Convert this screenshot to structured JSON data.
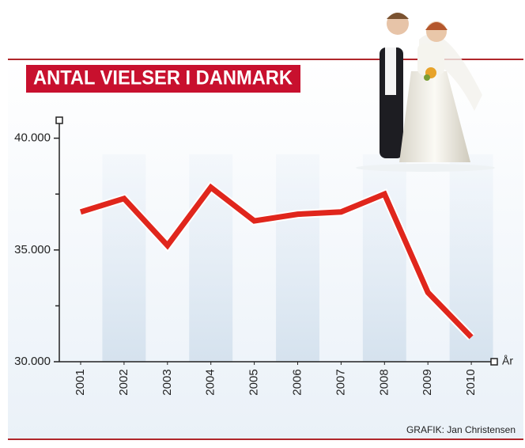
{
  "chart_data": {
    "type": "line",
    "title": "ANTAL VIELSER I DANMARK",
    "categories": [
      "2001",
      "2002",
      "2003",
      "2004",
      "2005",
      "2006",
      "2007",
      "2008",
      "2009",
      "2010"
    ],
    "values": [
      36700,
      37300,
      35200,
      37800,
      36300,
      36600,
      36700,
      37500,
      33100,
      31100
    ],
    "color": "#e0261c",
    "ylim": [
      30000,
      40800
    ],
    "yticks": [
      {
        "value": 30000,
        "label": "30.000"
      },
      {
        "value": 35000,
        "label": "35.000"
      },
      {
        "value": 40000,
        "label": "40.000"
      }
    ],
    "yminorticks": [
      32500,
      37500
    ],
    "xlabel": "År",
    "credit": "GRAFIK: Jan Christensen"
  }
}
